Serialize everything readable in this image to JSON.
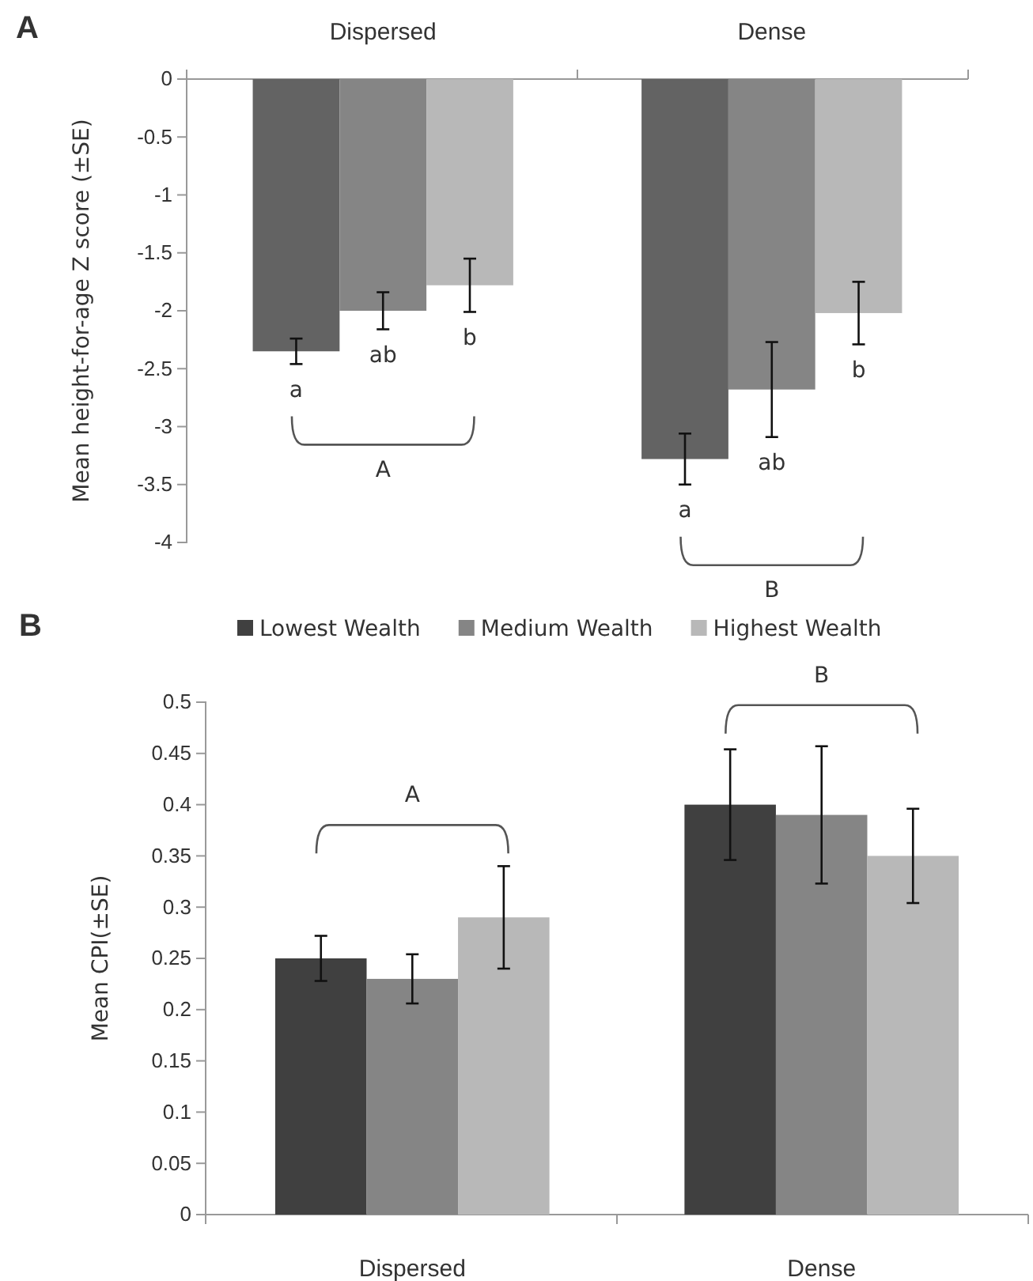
{
  "chart_data": [
    {
      "type": "bar",
      "title": "A",
      "ylabel": "Mean height-for-age Z score (±SE)",
      "categories": [
        "Dispersed",
        "Dense"
      ],
      "ylim": [
        -4,
        0
      ],
      "yticks": [
        -4,
        -3.5,
        -3,
        -2.5,
        -2,
        -1.5,
        -1,
        -0.5,
        0
      ],
      "grid": false,
      "legend": false,
      "series": [
        {
          "color": "#636363",
          "values": [
            -2.35,
            -3.28
          ],
          "errors": [
            0.11,
            0.22
          ],
          "value_labels": [
            "a",
            "a"
          ]
        },
        {
          "color": "#858585",
          "values": [
            -2.0,
            -2.68
          ],
          "errors": [
            0.16,
            0.41
          ],
          "value_labels": [
            "ab",
            "ab"
          ]
        },
        {
          "color": "#b8b8b8",
          "values": [
            -1.78,
            -2.02
          ],
          "errors": [
            0.23,
            0.27
          ],
          "value_labels": [
            "b",
            "b"
          ]
        }
      ],
      "annotations": [
        "A",
        "B"
      ]
    },
    {
      "type": "bar",
      "title": "B",
      "ylabel": "Mean CPI(±SE)",
      "categories": [
        "Dispersed",
        "Dense"
      ],
      "ylim": [
        0,
        0.5
      ],
      "yticks": [
        0,
        0.05,
        0.1,
        0.15,
        0.2,
        0.25,
        0.3,
        0.35,
        0.4,
        0.45,
        0.5
      ],
      "grid": false,
      "legend": "top",
      "series": [
        {
          "name": "Lowest Wealth",
          "color": "#404040",
          "values": [
            0.25,
            0.4
          ],
          "errors": [
            0.022,
            0.054
          ]
        },
        {
          "name": "Medium Wealth",
          "color": "#858585",
          "values": [
            0.23,
            0.39
          ],
          "errors": [
            0.024,
            0.067
          ]
        },
        {
          "name": "Highest Wealth",
          "color": "#b8b8b8",
          "values": [
            0.29,
            0.35
          ],
          "errors": [
            0.05,
            0.046
          ]
        }
      ],
      "annotations": [
        "A",
        "B"
      ]
    }
  ]
}
